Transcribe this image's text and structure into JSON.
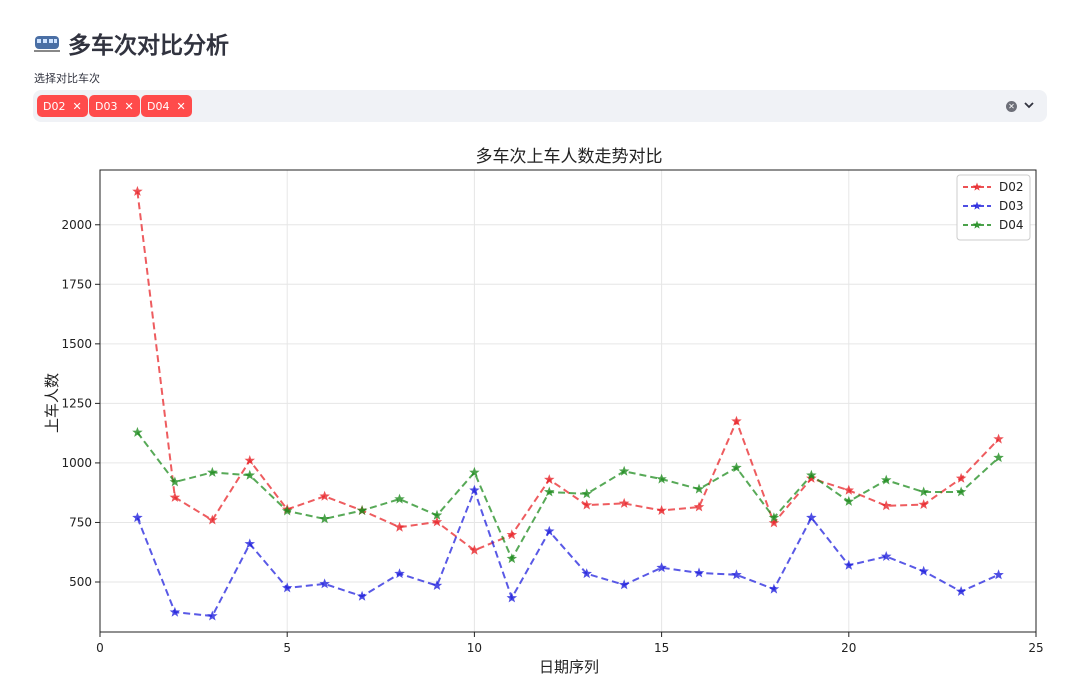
{
  "page": {
    "title": "多车次对比分析",
    "title_icon": "train-icon",
    "select_label": "选择对比车次",
    "selected_tags": [
      "D02",
      "D03",
      "D04"
    ],
    "tag_color": "#ff4b4b",
    "clear_icon": "clear-icon",
    "dropdown_icon": "chevron-down-icon"
  },
  "chart_data": {
    "type": "line",
    "title": "多车次上车人数走势对比",
    "xlabel": "日期序列",
    "ylabel": "上车人数",
    "xlim": [
      0,
      25
    ],
    "ylim": [
      290,
      2230
    ],
    "xticks": [
      0,
      5,
      10,
      15,
      20,
      25
    ],
    "yticks": [
      500,
      750,
      1000,
      1250,
      1500,
      1750,
      2000
    ],
    "grid": true,
    "legend_position": "top-right",
    "marker": "star",
    "line_style": "dashed",
    "x": [
      1,
      2,
      3,
      4,
      5,
      6,
      7,
      8,
      9,
      10,
      11,
      12,
      13,
      14,
      15,
      16,
      17,
      18,
      19,
      20,
      21,
      22,
      23,
      24
    ],
    "series": [
      {
        "name": "D02",
        "color": "#e8262a",
        "values": [
          2140,
          855,
          760,
          1010,
          805,
          860,
          800,
          730,
          752,
          633,
          698,
          930,
          823,
          830,
          800,
          815,
          1175,
          748,
          935,
          885,
          820,
          825,
          935,
          1100
        ]
      },
      {
        "name": "D03",
        "color": "#2222dd",
        "values": [
          770,
          373,
          357,
          660,
          475,
          492,
          440,
          535,
          485,
          885,
          433,
          713,
          535,
          488,
          560,
          538,
          530,
          470,
          770,
          570,
          607,
          545,
          460,
          530
        ]
      },
      {
        "name": "D04",
        "color": "#1f8c1f",
        "values": [
          1128,
          920,
          960,
          948,
          798,
          765,
          800,
          848,
          780,
          960,
          598,
          878,
          870,
          965,
          932,
          890,
          980,
          770,
          948,
          838,
          928,
          878,
          878,
          1022
        ]
      }
    ]
  }
}
